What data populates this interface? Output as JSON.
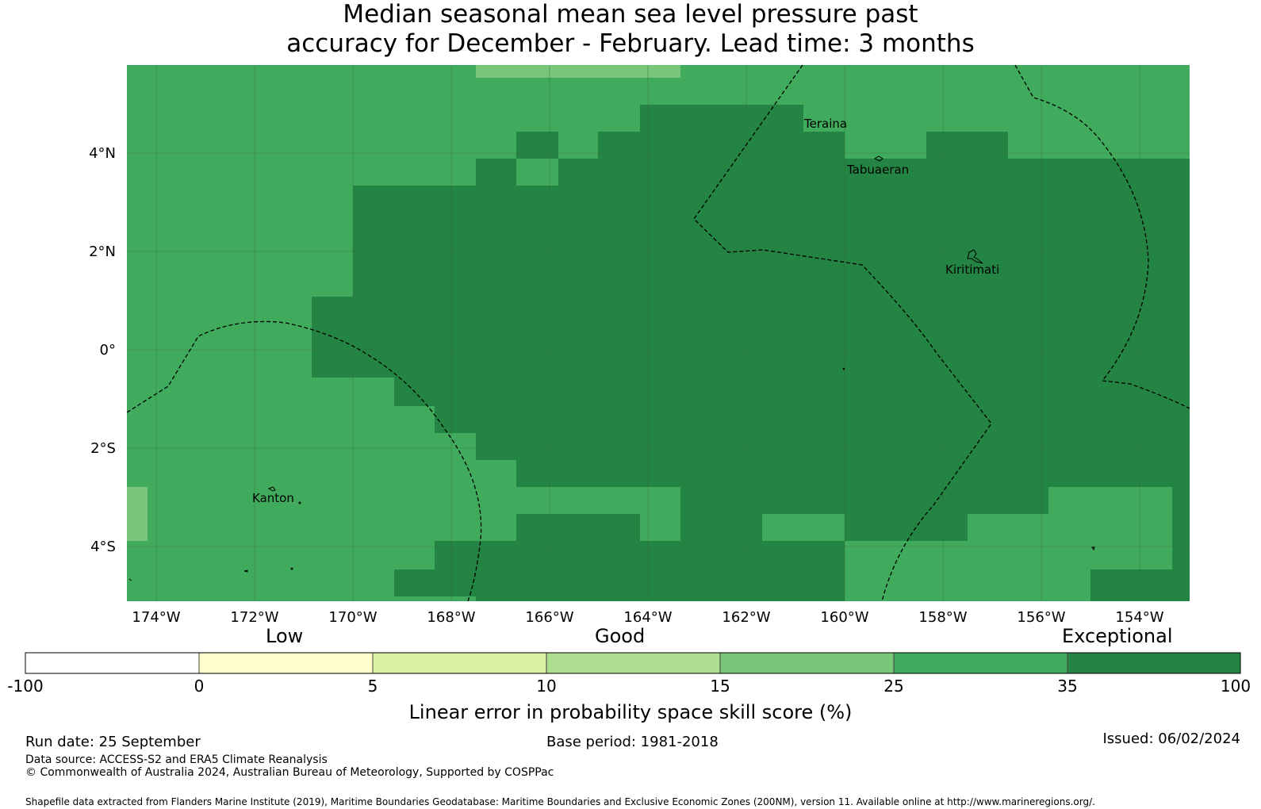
{
  "title_line1": "Median seasonal mean sea level pressure past",
  "title_line2": "accuracy for December - February. Lead time: 3 months",
  "map": {
    "lon_labels": [
      "174°W",
      "172°W",
      "170°W",
      "168°W",
      "166°W",
      "164°W",
      "162°W",
      "160°W",
      "158°W",
      "156°W",
      "154°W"
    ],
    "lat_labels": [
      "4°N",
      "2°N",
      "0°",
      "2°S",
      "4°S"
    ],
    "place_labels": [
      "Teraina",
      "Tabuaeran",
      "Kiritimati",
      "Kanton"
    ],
    "colors": {
      "cat_15_25": "#78c679",
      "cat_25_35": "#41ab5d",
      "cat_35_100": "#238443",
      "grid": "#3a6b3a",
      "boundary": "#000000"
    },
    "skill_category": "predominantly 25-35 (outer) and 35-100 (central)"
  },
  "colorbar": {
    "category_labels": [
      "Low",
      "Good",
      "Exceptional"
    ],
    "ticks": [
      "-100",
      "0",
      "5",
      "10",
      "15",
      "25",
      "35",
      "100"
    ],
    "colors": [
      "#ffffff",
      "#ffffcc",
      "#d9f0a3",
      "#addd8e",
      "#78c679",
      "#41ab5d",
      "#238443"
    ],
    "label": "Linear error in probability space skill score (%)"
  },
  "footer": {
    "run_date": "Run date: 25 September",
    "base_period": "Base period: 1981-2018",
    "issued": "Issued: 06/02/2024",
    "data_source": "Data source: ACCESS-S2 and ERA5 Climate Reanalysis",
    "copyright": "© Commonwealth of Australia 2024, Australian Bureau of Meteorology, Supported by COSPPac",
    "shapefile": "Shapefile data extracted from Flanders Marine Institute (2019), Maritime Boundaries Geodatabase: Maritime Boundaries and Exclusive Economic Zones (200NM), version 11. Available online at http://www.marineregions.org/."
  }
}
